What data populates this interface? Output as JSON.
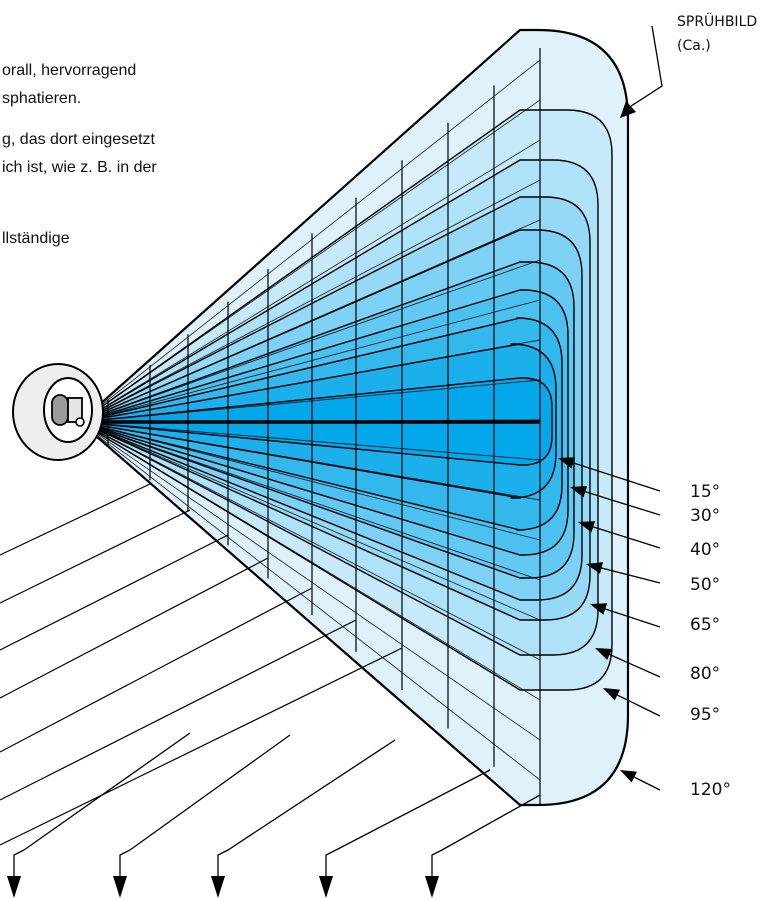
{
  "text_lines": [
    "orall, hervorragend",
    "sphatieren.",
    "g, das dort eingesetzt",
    "ich ist, wie z. B. in der",
    "llständige"
  ],
  "spray_label": {
    "line1": "SPRÜHBILD",
    "line2": "(Ca.)"
  },
  "angles": [
    "15°",
    "30°",
    "40°",
    "50°",
    "65°",
    "80°",
    "95°",
    "120°"
  ],
  "colors": {
    "outer_fill": "#dff2fc",
    "inner_fill": "#02a8ea",
    "outline": "#000000",
    "nozzle_gray": "#9a9a9a"
  }
}
